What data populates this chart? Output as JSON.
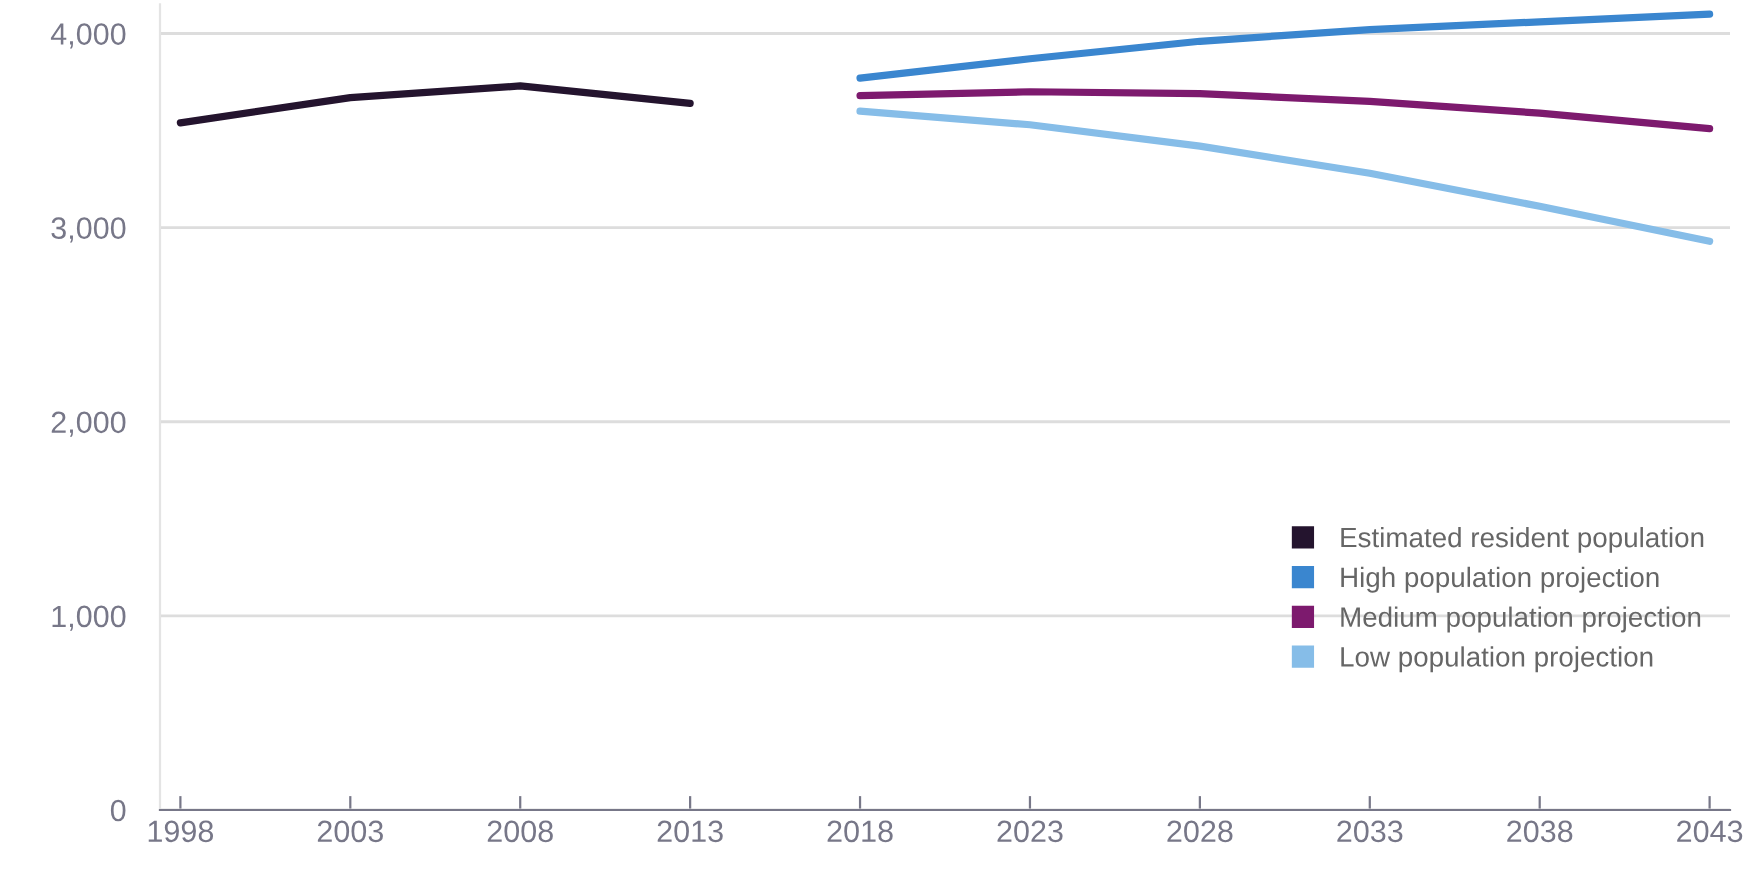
{
  "chart_data": {
    "type": "line",
    "x": [
      1998,
      2003,
      2008,
      2013,
      2018,
      2023,
      2028,
      2033,
      2038,
      2043
    ],
    "series": [
      {
        "name": "Estimated resident population",
        "color": "#24142e",
        "values": [
          3540,
          3670,
          3730,
          3640,
          null,
          null,
          null,
          null,
          null,
          null
        ]
      },
      {
        "name": "High population projection",
        "color": "#3a86cf",
        "values": [
          null,
          null,
          null,
          null,
          3770,
          3870,
          3960,
          4020,
          4060,
          4100
        ]
      },
      {
        "name": "Medium population projection",
        "color": "#7d1a6e",
        "values": [
          null,
          null,
          null,
          null,
          3680,
          3700,
          3690,
          3650,
          3590,
          3510
        ]
      },
      {
        "name": "Low population projection",
        "color": "#86bde8",
        "values": [
          null,
          null,
          null,
          null,
          3600,
          3530,
          3420,
          3280,
          3110,
          2930
        ]
      }
    ],
    "xlim": [
      1997.4,
      2043.6
    ],
    "xticks": [
      1998,
      2003,
      2008,
      2013,
      2018,
      2023,
      2028,
      2033,
      2038,
      2043
    ],
    "ylim": [
      0,
      4150
    ],
    "yticks": [
      0,
      {
        "value": 1000,
        "label": "1,000"
      },
      {
        "value": 2000,
        "label": "2,000"
      },
      {
        "value": 3000,
        "label": "3,000"
      },
      {
        "value": 4000,
        "label": "4,000"
      }
    ],
    "grid": "y",
    "legend": "bottom right",
    "marker": "none",
    "line_style": "solid"
  }
}
